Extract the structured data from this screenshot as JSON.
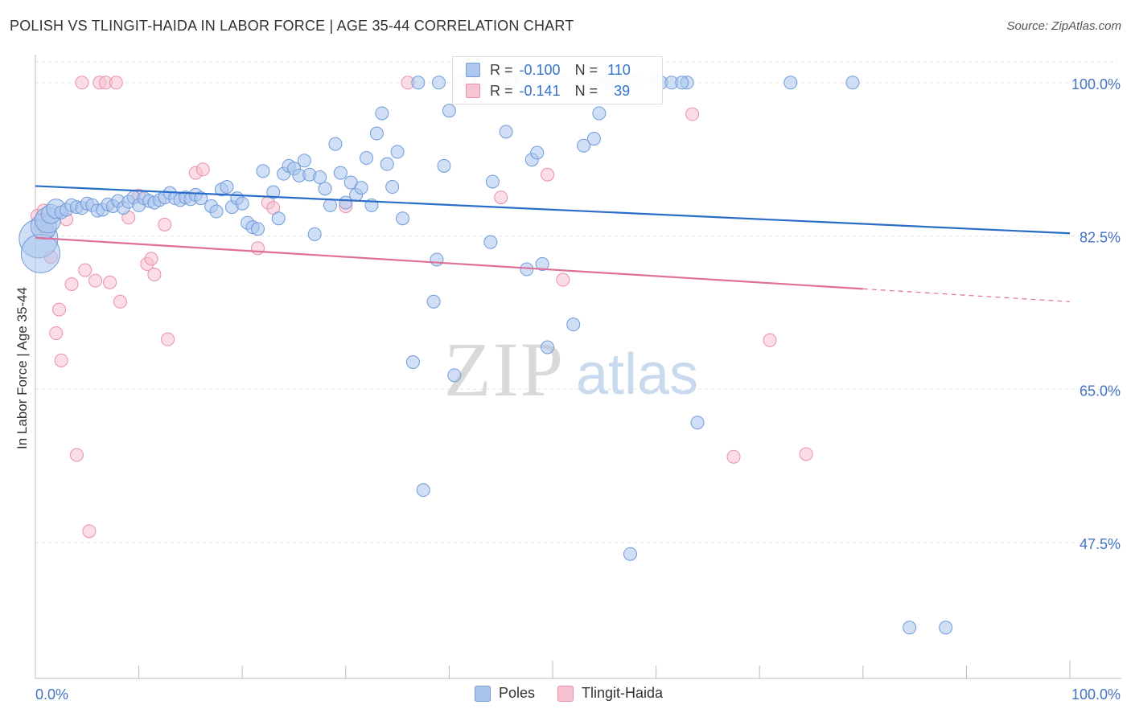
{
  "header": {
    "title": "POLISH VS TLINGIT-HAIDA IN LABOR FORCE | AGE 35-44 CORRELATION CHART",
    "source": "Source: ZipAtlas.com"
  },
  "legend": {
    "rows": [
      {
        "r_label": "R =",
        "r_value": "-0.100",
        "n_label": "N =",
        "n_value": "110"
      },
      {
        "r_label": "R =",
        "r_value": "-0.141",
        "n_label": "N =",
        "n_value": "39"
      }
    ]
  },
  "bottom_legend": [
    "Poles",
    "Tlingit-Haida"
  ],
  "watermark": {
    "zip": "ZIP",
    "atlas": "atlas"
  },
  "chart_data": {
    "type": "scatter",
    "ylabel": "In Labor Force | Age 35-44",
    "xlim": [
      0,
      100
    ],
    "ylim": [
      32,
      104
    ],
    "x_tick_labels": [
      "0.0%",
      "100.0%"
    ],
    "y_ticks": [
      {
        "value": 47.5,
        "label": "47.5%"
      },
      {
        "value": 65.0,
        "label": "65.0%"
      },
      {
        "value": 82.5,
        "label": "82.5%"
      },
      {
        "value": 100.0,
        "label": "100.0%"
      }
    ],
    "grid": true,
    "colors": {
      "poles_fill": "#a9c5ee",
      "poles_stroke": "#6f9bd8",
      "poles_line": "#2a6dc8",
      "tlingit_fill": "#f7c1d0",
      "tlingit_stroke": "#ea8fab",
      "tlingit_line": "#e06f98",
      "axis_text": "#4472c4",
      "grid": "#e3e3e3"
    },
    "series": [
      {
        "name": "Poles",
        "trend": {
          "x0": 0,
          "y0": 88.2,
          "x1": 100,
          "y1": 82.8,
          "solid_until": 100
        },
        "points": [
          [
            0.3,
            82.2,
            3
          ],
          [
            0.5,
            80.5,
            3
          ],
          [
            0.8,
            83.6,
            2
          ],
          [
            1.2,
            84.3,
            2
          ],
          [
            1.5,
            85.0,
            1.5
          ],
          [
            2.0,
            85.6,
            1.5
          ],
          [
            2.5,
            85.2,
            1
          ],
          [
            3.0,
            85.5,
            1
          ],
          [
            3.5,
            86.0,
            1
          ],
          [
            4.0,
            85.8,
            1
          ],
          [
            4.5,
            85.7,
            1
          ],
          [
            5.0,
            86.2,
            1
          ],
          [
            5.5,
            86.0,
            1
          ],
          [
            6.0,
            85.4,
            1
          ],
          [
            6.5,
            85.5,
            1
          ],
          [
            7.0,
            86.1,
            1
          ],
          [
            7.5,
            85.9,
            1
          ],
          [
            8.0,
            86.5,
            1
          ],
          [
            8.5,
            85.7,
            1
          ],
          [
            9.0,
            86.4,
            1
          ],
          [
            9.5,
            86.9,
            1
          ],
          [
            10.0,
            86.0,
            1
          ],
          [
            10.5,
            86.8,
            1
          ],
          [
            11.0,
            86.5,
            1
          ],
          [
            11.5,
            86.3,
            1
          ],
          [
            12.0,
            86.6,
            1
          ],
          [
            12.5,
            86.9,
            1
          ],
          [
            13.0,
            87.4,
            1
          ],
          [
            13.5,
            86.8,
            1
          ],
          [
            14.0,
            86.6,
            1
          ],
          [
            14.5,
            86.9,
            1
          ],
          [
            15.0,
            86.7,
            1
          ],
          [
            15.5,
            87.2,
            1
          ],
          [
            16.0,
            86.8,
            1
          ],
          [
            17.0,
            85.9,
            1
          ],
          [
            17.5,
            85.3,
            1
          ],
          [
            18.0,
            87.8,
            1
          ],
          [
            18.5,
            88.1,
            1
          ],
          [
            19.0,
            85.8,
            1
          ],
          [
            19.5,
            86.8,
            1
          ],
          [
            20.0,
            86.2,
            1
          ],
          [
            20.5,
            84.0,
            1
          ],
          [
            21.0,
            83.5,
            1
          ],
          [
            21.5,
            83.3,
            1
          ],
          [
            22.0,
            89.9,
            1
          ],
          [
            23.0,
            87.5,
            1
          ],
          [
            23.5,
            84.5,
            1
          ],
          [
            24.0,
            89.6,
            1
          ],
          [
            24.5,
            90.5,
            1
          ],
          [
            25.0,
            90.2,
            1
          ],
          [
            25.5,
            89.4,
            1
          ],
          [
            26.0,
            91.1,
            1
          ],
          [
            26.5,
            89.5,
            1
          ],
          [
            27.0,
            82.7,
            1
          ],
          [
            27.5,
            89.2,
            1
          ],
          [
            28.0,
            87.9,
            1
          ],
          [
            28.5,
            86.0,
            1
          ],
          [
            29.0,
            93.0,
            1
          ],
          [
            29.5,
            89.7,
            1
          ],
          [
            30.0,
            86.3,
            1
          ],
          [
            30.5,
            88.6,
            1
          ],
          [
            31.0,
            87.2,
            1
          ],
          [
            31.5,
            88.0,
            1
          ],
          [
            32.0,
            91.4,
            1
          ],
          [
            32.5,
            86.0,
            1
          ],
          [
            33.0,
            94.2,
            1
          ],
          [
            33.5,
            96.5,
            1
          ],
          [
            34.0,
            90.7,
            1
          ],
          [
            34.5,
            88.1,
            1
          ],
          [
            35.0,
            92.1,
            1
          ],
          [
            35.5,
            84.5,
            1
          ],
          [
            36.5,
            68.1,
            1
          ],
          [
            37.0,
            100.0,
            1
          ],
          [
            37.5,
            53.5,
            1
          ],
          [
            38.5,
            75.0,
            1
          ],
          [
            38.8,
            79.8,
            1
          ],
          [
            39.0,
            100.0,
            1
          ],
          [
            39.5,
            90.5,
            1
          ],
          [
            40.0,
            96.8,
            1
          ],
          [
            40.5,
            66.6,
            1
          ],
          [
            41.0,
            100.0,
            1
          ],
          [
            42.0,
            100.0,
            1
          ],
          [
            43.0,
            100.0,
            1
          ],
          [
            44.0,
            81.8,
            1
          ],
          [
            44.2,
            88.7,
            1
          ],
          [
            45.0,
            100.0,
            1
          ],
          [
            45.5,
            94.4,
            1
          ],
          [
            46.0,
            100.0,
            1
          ],
          [
            47.0,
            100.0,
            1
          ],
          [
            47.5,
            78.7,
            1
          ],
          [
            48.0,
            91.2,
            1
          ],
          [
            48.5,
            92.0,
            1
          ],
          [
            49.0,
            79.3,
            1
          ],
          [
            49.5,
            69.8,
            1
          ],
          [
            50.0,
            100.0,
            1
          ],
          [
            51.0,
            100.0,
            1
          ],
          [
            52.0,
            72.4,
            1
          ],
          [
            52.5,
            100.0,
            1
          ],
          [
            53.0,
            92.8,
            1
          ],
          [
            54.0,
            93.6,
            1
          ],
          [
            55.0,
            100.0,
            1
          ],
          [
            57.0,
            100.0,
            1
          ],
          [
            58.0,
            100.0,
            1
          ],
          [
            60.0,
            100.0,
            1
          ],
          [
            63.0,
            100.0,
            1
          ],
          [
            55.5,
            100.0,
            1
          ],
          [
            60.5,
            100.0,
            1
          ],
          [
            56.5,
            100.0,
            1
          ],
          [
            54.5,
            96.5,
            1
          ],
          [
            57.5,
            46.2,
            1
          ],
          [
            61.5,
            100.0,
            1
          ],
          [
            62.5,
            100.0,
            1
          ],
          [
            64.0,
            61.2,
            1
          ],
          [
            73.0,
            100.0,
            1
          ],
          [
            79.0,
            100.0,
            1
          ],
          [
            84.5,
            37.8,
            1
          ],
          [
            88.0,
            37.8,
            1
          ]
        ]
      },
      {
        "name": "Tlingit-Haida",
        "trend": {
          "x0": 0,
          "y0": 82.3,
          "x1": 100,
          "y1": 75.0,
          "solid_until": 80
        },
        "points": [
          [
            0.2,
            84.8,
            1
          ],
          [
            0.5,
            83.6,
            1
          ],
          [
            0.8,
            85.4,
            1
          ],
          [
            1.2,
            82.9,
            1
          ],
          [
            1.5,
            80.1,
            1
          ],
          [
            2.0,
            71.4,
            1
          ],
          [
            2.3,
            74.1,
            1
          ],
          [
            2.5,
            68.3,
            1
          ],
          [
            3.0,
            84.4,
            1
          ],
          [
            3.5,
            77.0,
            1
          ],
          [
            4.0,
            57.5,
            1
          ],
          [
            4.5,
            100.0,
            1
          ],
          [
            4.8,
            78.6,
            1
          ],
          [
            5.2,
            48.8,
            1
          ],
          [
            5.8,
            77.4,
            1
          ],
          [
            6.2,
            100.0,
            1
          ],
          [
            6.8,
            100.0,
            1
          ],
          [
            7.2,
            77.2,
            1
          ],
          [
            7.8,
            100.0,
            1
          ],
          [
            8.2,
            75.0,
            1
          ],
          [
            9.0,
            84.6,
            1
          ],
          [
            10.0,
            87.1,
            1
          ],
          [
            10.8,
            79.3,
            1
          ],
          [
            11.2,
            79.9,
            1
          ],
          [
            11.5,
            78.1,
            1
          ],
          [
            12.5,
            83.8,
            1
          ],
          [
            12.8,
            70.7,
            1
          ],
          [
            15.5,
            89.7,
            1
          ],
          [
            16.2,
            90.1,
            1
          ],
          [
            21.5,
            81.1,
            1
          ],
          [
            22.5,
            86.3,
            1
          ],
          [
            23.0,
            85.7,
            1
          ],
          [
            30.0,
            85.9,
            1
          ],
          [
            36.0,
            100.0,
            1
          ],
          [
            45.0,
            86.9,
            1
          ],
          [
            49.5,
            89.5,
            1
          ],
          [
            51.0,
            77.5,
            1
          ],
          [
            63.5,
            96.4,
            1
          ],
          [
            67.5,
            57.3,
            1
          ],
          [
            71.0,
            70.6,
            1
          ],
          [
            74.5,
            57.6,
            1
          ]
        ]
      }
    ]
  }
}
